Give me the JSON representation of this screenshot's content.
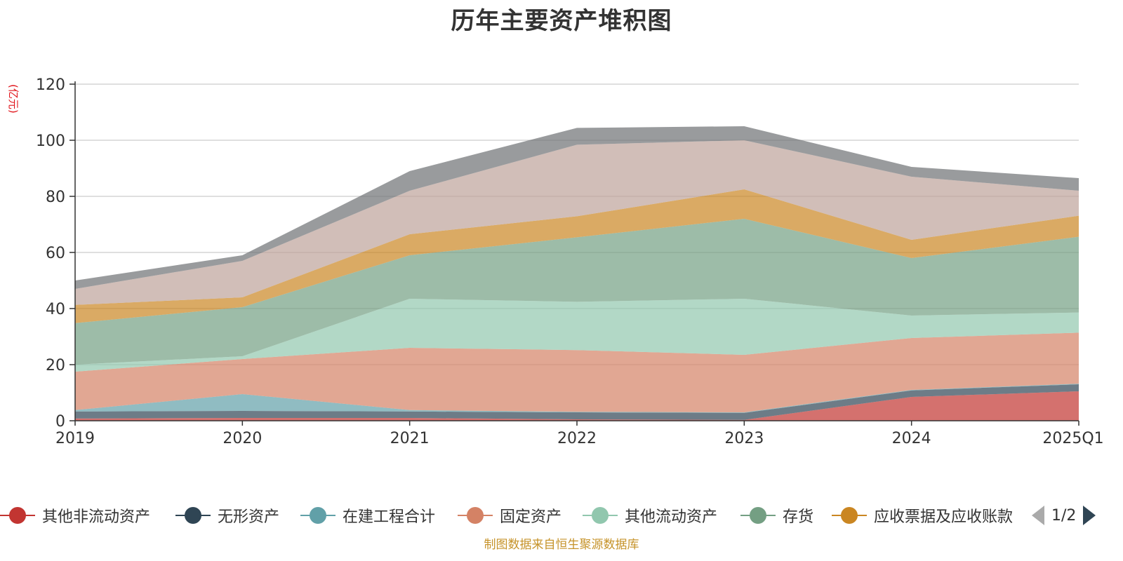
{
  "chart_data": {
    "type": "area",
    "stacked": true,
    "title": "历年主要资产堆积图",
    "unit": "(亿元)",
    "categories": [
      "2019",
      "2020",
      "2021",
      "2022",
      "2023",
      "2024",
      "2025Q1"
    ],
    "ylim": [
      0,
      120
    ],
    "yticks": [
      "0",
      "20",
      "40",
      "60",
      "80",
      "100",
      "120"
    ],
    "grid": true,
    "legend_position": "bottom",
    "series": [
      {
        "name": "其他非流动资产",
        "color": "#c23531",
        "values": [
          0.8,
          1.0,
          1.0,
          0.5,
          0.3,
          8.5,
          10.5
        ]
      },
      {
        "name": "无形资产",
        "color": "#2f4554",
        "values": [
          2.5,
          2.5,
          2.3,
          2.5,
          2.5,
          2.3,
          2.5
        ]
      },
      {
        "name": "在建工程合计",
        "color": "#61a0a8",
        "values": [
          0.5,
          6.0,
          0.5,
          0.2,
          0.2,
          0.2,
          0.2
        ]
      },
      {
        "name": "固定资产",
        "color": "#d48265",
        "values": [
          13.7,
          12.5,
          22.2,
          22.0,
          20.5,
          18.5,
          18.2
        ]
      },
      {
        "name": "其他流动资产",
        "color": "#91c7ae",
        "values": [
          2.5,
          1.0,
          17.5,
          17.2,
          20.0,
          8.0,
          7.2
        ]
      },
      {
        "name": "存货",
        "color": "#749f83",
        "values": [
          14.8,
          17.5,
          15.5,
          23.0,
          28.5,
          20.5,
          27.0
        ]
      },
      {
        "name": "应收票据及应收账款",
        "color": "#ca8622",
        "values": [
          6.5,
          3.5,
          7.5,
          7.5,
          10.5,
          6.5,
          7.5
        ]
      },
      {
        "name": "",
        "color": "#bda29a",
        "values": [
          5.7,
          13.0,
          15.5,
          25.5,
          17.5,
          22.5,
          8.9
        ]
      },
      {
        "name": "",
        "color": "#6e7074",
        "values": [
          3.0,
          2.0,
          7.0,
          6.0,
          5.0,
          3.5,
          4.5
        ]
      }
    ]
  },
  "legend": {
    "items": [
      {
        "label": "其他非流动资产",
        "color": "#c23531"
      },
      {
        "label": "无形资产",
        "color": "#2f4554"
      },
      {
        "label": "在建工程合计",
        "color": "#61a0a8"
      },
      {
        "label": "固定资产",
        "color": "#d48265"
      },
      {
        "label": "其他流动资产",
        "color": "#91c7ae"
      },
      {
        "label": "存货",
        "color": "#749f83"
      },
      {
        "label": "应收票据及应收账款",
        "color": "#ca8622"
      }
    ],
    "page": "1/2"
  },
  "footer": "制图数据来自恒生聚源数据库"
}
